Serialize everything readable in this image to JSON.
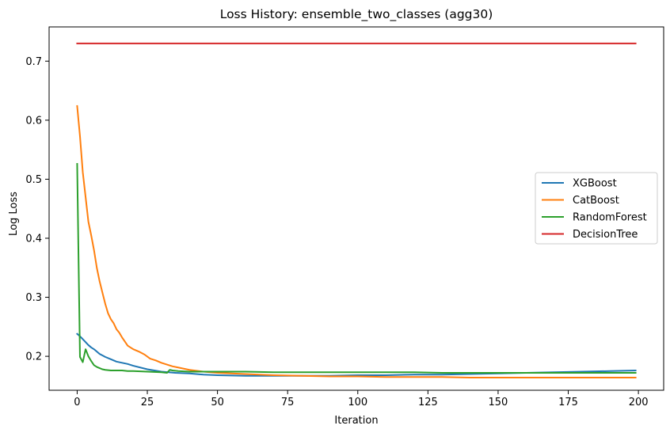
{
  "chart_data": {
    "type": "line",
    "title": "Loss History: ensemble_two_classes (agg30)",
    "xlabel": "Iteration",
    "ylabel": "Log Loss",
    "xlim": [
      -10,
      209
    ],
    "ylim": [
      0.1425,
      0.758
    ],
    "xticks": [
      0,
      25,
      50,
      75,
      100,
      125,
      150,
      175,
      200
    ],
    "yticks": [
      0.2,
      0.3,
      0.4,
      0.5,
      0.6,
      0.7
    ],
    "ytick_labels": [
      "0.2",
      "0.3",
      "0.4",
      "0.5",
      "0.6",
      "0.7"
    ],
    "grid": false,
    "legend_position": "center-right",
    "series": [
      {
        "name": "XGBoost",
        "color": "#1f77b4",
        "points": [
          [
            0,
            0.238
          ],
          [
            1,
            0.234
          ],
          [
            2,
            0.229
          ],
          [
            3,
            0.224
          ],
          [
            4,
            0.219
          ],
          [
            5,
            0.215
          ],
          [
            6,
            0.212
          ],
          [
            7,
            0.208
          ],
          [
            8,
            0.204
          ],
          [
            10,
            0.199
          ],
          [
            12,
            0.195
          ],
          [
            14,
            0.191
          ],
          [
            16,
            0.189
          ],
          [
            18,
            0.187
          ],
          [
            20,
            0.184
          ],
          [
            25,
            0.178
          ],
          [
            30,
            0.174
          ],
          [
            35,
            0.172
          ],
          [
            40,
            0.171
          ],
          [
            45,
            0.169
          ],
          [
            50,
            0.168
          ],
          [
            60,
            0.167
          ],
          [
            70,
            0.167
          ],
          [
            80,
            0.167
          ],
          [
            90,
            0.167
          ],
          [
            100,
            0.168
          ],
          [
            110,
            0.168
          ],
          [
            120,
            0.169
          ],
          [
            130,
            0.169
          ],
          [
            140,
            0.17
          ],
          [
            150,
            0.171
          ],
          [
            160,
            0.172
          ],
          [
            170,
            0.173
          ],
          [
            180,
            0.174
          ],
          [
            190,
            0.175
          ],
          [
            199,
            0.176
          ]
        ]
      },
      {
        "name": "CatBoost",
        "color": "#ff7f0e",
        "points": [
          [
            0,
            0.624
          ],
          [
            1,
            0.573
          ],
          [
            2,
            0.512
          ],
          [
            3,
            0.47
          ],
          [
            4,
            0.428
          ],
          [
            5,
            0.405
          ],
          [
            6,
            0.38
          ],
          [
            7,
            0.35
          ],
          [
            8,
            0.327
          ],
          [
            9,
            0.308
          ],
          [
            10,
            0.289
          ],
          [
            11,
            0.273
          ],
          [
            12,
            0.263
          ],
          [
            13,
            0.256
          ],
          [
            14,
            0.246
          ],
          [
            15,
            0.24
          ],
          [
            16,
            0.232
          ],
          [
            17,
            0.225
          ],
          [
            18,
            0.218
          ],
          [
            19,
            0.215
          ],
          [
            20,
            0.212
          ],
          [
            22,
            0.208
          ],
          [
            24,
            0.203
          ],
          [
            26,
            0.196
          ],
          [
            28,
            0.193
          ],
          [
            30,
            0.189
          ],
          [
            32,
            0.186
          ],
          [
            34,
            0.183
          ],
          [
            36,
            0.181
          ],
          [
            38,
            0.179
          ],
          [
            40,
            0.177
          ],
          [
            45,
            0.174
          ],
          [
            50,
            0.172
          ],
          [
            60,
            0.17
          ],
          [
            70,
            0.168
          ],
          [
            80,
            0.167
          ],
          [
            90,
            0.166
          ],
          [
            100,
            0.166
          ],
          [
            110,
            0.165
          ],
          [
            120,
            0.165
          ],
          [
            130,
            0.165
          ],
          [
            140,
            0.164
          ],
          [
            150,
            0.164
          ],
          [
            160,
            0.164
          ],
          [
            170,
            0.164
          ],
          [
            180,
            0.164
          ],
          [
            190,
            0.164
          ],
          [
            199,
            0.164
          ]
        ]
      },
      {
        "name": "RandomForest",
        "color": "#2ca02c",
        "points": [
          [
            0,
            0.526
          ],
          [
            1,
            0.199
          ],
          [
            2,
            0.19
          ],
          [
            3,
            0.212
          ],
          [
            4,
            0.2
          ],
          [
            5,
            0.192
          ],
          [
            6,
            0.185
          ],
          [
            7,
            0.182
          ],
          [
            8,
            0.18
          ],
          [
            9,
            0.178
          ],
          [
            10,
            0.177
          ],
          [
            12,
            0.176
          ],
          [
            14,
            0.176
          ],
          [
            16,
            0.176
          ],
          [
            18,
            0.175
          ],
          [
            20,
            0.175
          ],
          [
            25,
            0.174
          ],
          [
            30,
            0.173
          ],
          [
            32,
            0.172
          ],
          [
            33,
            0.177
          ],
          [
            34,
            0.176
          ],
          [
            36,
            0.175
          ],
          [
            40,
            0.174
          ],
          [
            45,
            0.174
          ],
          [
            50,
            0.174
          ],
          [
            60,
            0.174
          ],
          [
            70,
            0.173
          ],
          [
            80,
            0.173
          ],
          [
            90,
            0.173
          ],
          [
            100,
            0.173
          ],
          [
            110,
            0.173
          ],
          [
            120,
            0.173
          ],
          [
            130,
            0.172
          ],
          [
            140,
            0.172
          ],
          [
            150,
            0.172
          ],
          [
            160,
            0.172
          ],
          [
            170,
            0.172
          ],
          [
            180,
            0.172
          ],
          [
            190,
            0.172
          ],
          [
            199,
            0.172
          ]
        ]
      },
      {
        "name": "DecisionTree",
        "color": "#d62728",
        "points": [
          [
            0,
            0.73
          ],
          [
            199,
            0.73
          ]
        ]
      }
    ]
  }
}
